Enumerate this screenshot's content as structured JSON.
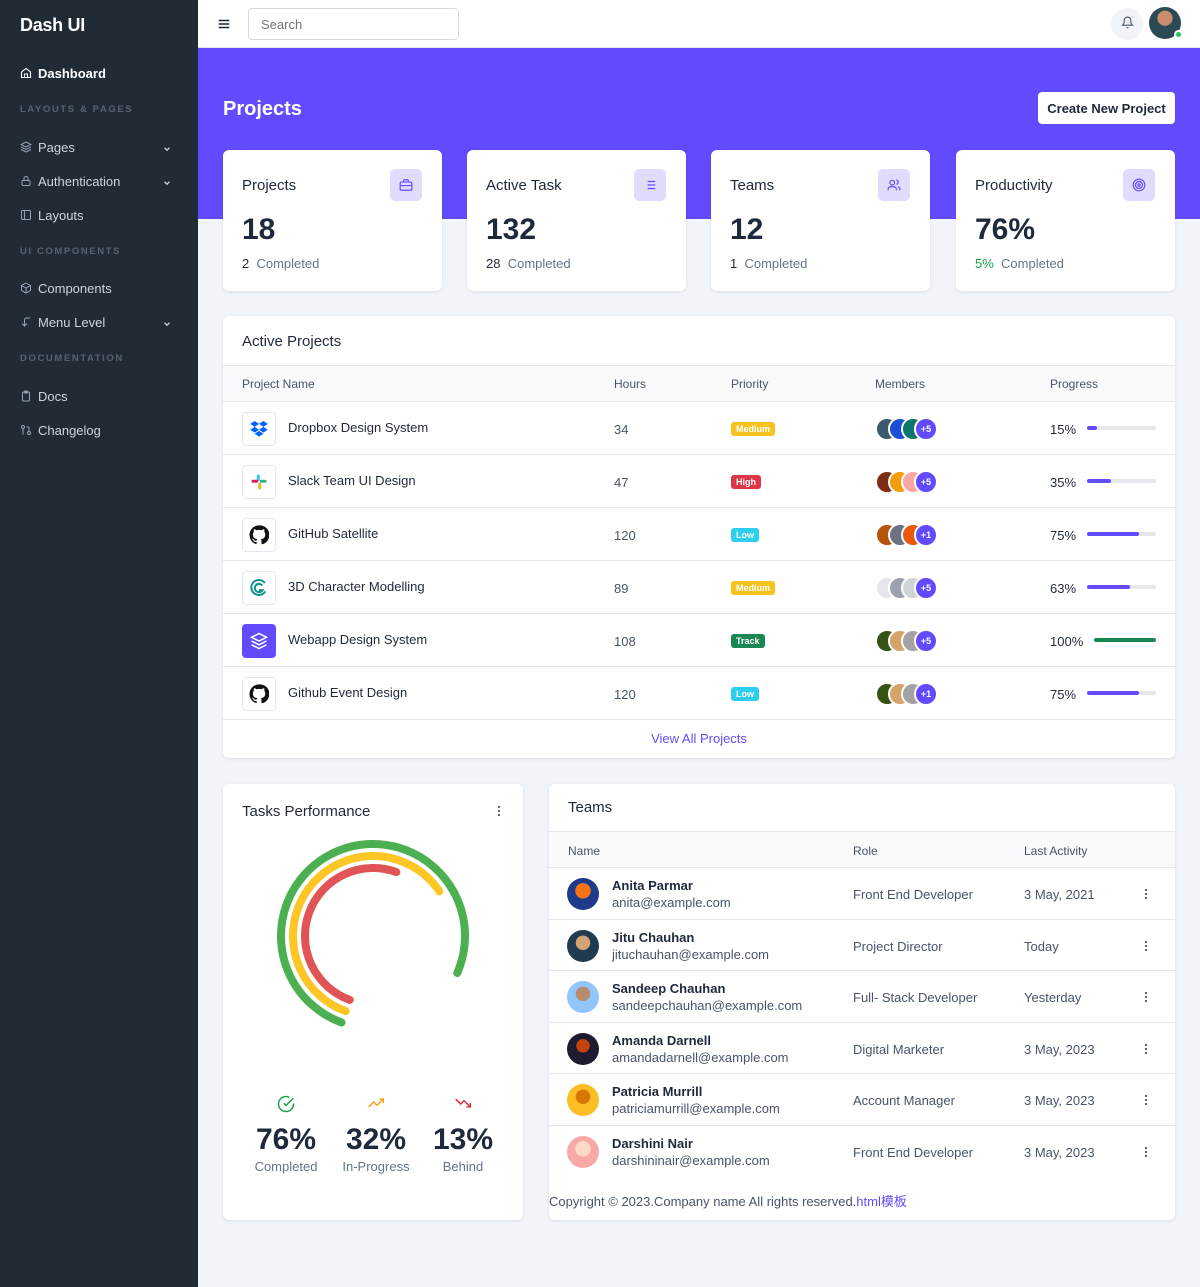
{
  "app": {
    "brand": "Dash UI"
  },
  "colors": {
    "primary": "#624bff",
    "sidebar": "#212b36",
    "success": "#16a34a",
    "warning": "#f9c31f",
    "danger": "#dc3545",
    "info": "#2dcfee",
    "track": "#198754"
  },
  "sidebar": {
    "dashboard": "Dashboard",
    "sections": [
      "LAYOUTS & PAGES",
      "UI COMPONENTS",
      "DOCUMENTATION"
    ],
    "items": [
      {
        "label": "Pages",
        "icon": "layers-icon"
      },
      {
        "label": "Authentication",
        "icon": "lock-icon"
      },
      {
        "label": "Layouts",
        "icon": "sidebar-icon"
      },
      {
        "label": "Components",
        "icon": "package-icon"
      },
      {
        "label": "Menu Level",
        "icon": "corner-left-down-icon"
      },
      {
        "label": "Docs",
        "icon": "clipboard-icon"
      },
      {
        "label": "Changelog",
        "icon": "git-pull-request-icon"
      }
    ]
  },
  "topbar": {
    "search_placeholder": "Search"
  },
  "hero": {
    "title": "Projects",
    "create_button": "Create New Project"
  },
  "stats": [
    {
      "title": "Projects",
      "value": "18",
      "sub_num": "2",
      "sub_text": "Completed",
      "icon": "briefcase-icon"
    },
    {
      "title": "Active Task",
      "value": "132",
      "sub_num": "28",
      "sub_text": "Completed",
      "icon": "list-icon"
    },
    {
      "title": "Teams",
      "value": "12",
      "sub_num": "1",
      "sub_text": "Completed",
      "icon": "users-icon"
    },
    {
      "title": "Productivity",
      "value": "76%",
      "sub_num": "5%",
      "sub_text": "Completed",
      "icon": "target-icon"
    }
  ],
  "projects": {
    "title": "Active Projects",
    "columns": [
      "Project Name",
      "Hours",
      "Priority",
      "Members",
      "Progress"
    ],
    "rows": [
      {
        "name": "Dropbox Design System",
        "hours": "34",
        "priority": "Medium",
        "priority_color": "#f9c31f",
        "more": "+5",
        "progress": "15%",
        "progress_value": 15,
        "logo": "dropbox-logo"
      },
      {
        "name": "Slack Team UI Design",
        "hours": "47",
        "priority": "High",
        "priority_color": "#dc3545",
        "more": "+5",
        "progress": "35%",
        "progress_value": 35,
        "logo": "slack-logo"
      },
      {
        "name": "GitHub Satellite",
        "hours": "120",
        "priority": "Low",
        "priority_color": "#2dcfee",
        "more": "+1",
        "progress": "75%",
        "progress_value": 75,
        "logo": "github-logo"
      },
      {
        "name": "3D Character Modelling",
        "hours": "89",
        "priority": "Medium",
        "priority_color": "#f9c31f",
        "more": "+5",
        "progress": "63%",
        "progress_value": 63,
        "logo": "modelling-logo"
      },
      {
        "name": "Webapp Design System",
        "hours": "108",
        "priority": "Track",
        "priority_color": "#198754",
        "more": "+5",
        "progress": "100%",
        "progress_value": 100,
        "logo": "layers-logo"
      },
      {
        "name": "Github Event Design",
        "hours": "120",
        "priority": "Low",
        "priority_color": "#2dcfee",
        "more": "+1",
        "progress": "75%",
        "progress_value": 75,
        "logo": "github-logo"
      }
    ],
    "view_all": "View All Projects"
  },
  "tasks": {
    "title": "Tasks Performance",
    "completed": {
      "value": "76%",
      "label": "Completed"
    },
    "in_progress": {
      "value": "32%",
      "label": "In-Progress"
    },
    "behind": {
      "value": "13%",
      "label": "Behind"
    }
  },
  "teams": {
    "title": "Teams",
    "columns": [
      "Name",
      "Role",
      "Last Activity"
    ],
    "rows": [
      {
        "name": "Anita Parmar",
        "email": "anita@example.com",
        "role": "Front End Developer",
        "last": "3 May, 2021"
      },
      {
        "name": "Jitu Chauhan",
        "email": "jituchauhan@example.com",
        "role": "Project Director",
        "last": "Today"
      },
      {
        "name": "Sandeep Chauhan",
        "email": "sandeepchauhan@example.com",
        "role": "Full- Stack Developer",
        "last": "Yesterday"
      },
      {
        "name": "Amanda Darnell",
        "email": "amandadarnell@example.com",
        "role": "Digital Marketer",
        "last": "3 May, 2023"
      },
      {
        "name": "Patricia Murrill",
        "email": "patriciamurrill@example.com",
        "role": "Account Manager",
        "last": "3 May, 2023"
      },
      {
        "name": "Darshini Nair",
        "email": "darshininair@example.com",
        "role": "Front End Developer",
        "last": "3 May, 2023"
      }
    ]
  },
  "footer": {
    "text": "Copyright © 2023.Company name All rights reserved.",
    "link": "html模板"
  }
}
